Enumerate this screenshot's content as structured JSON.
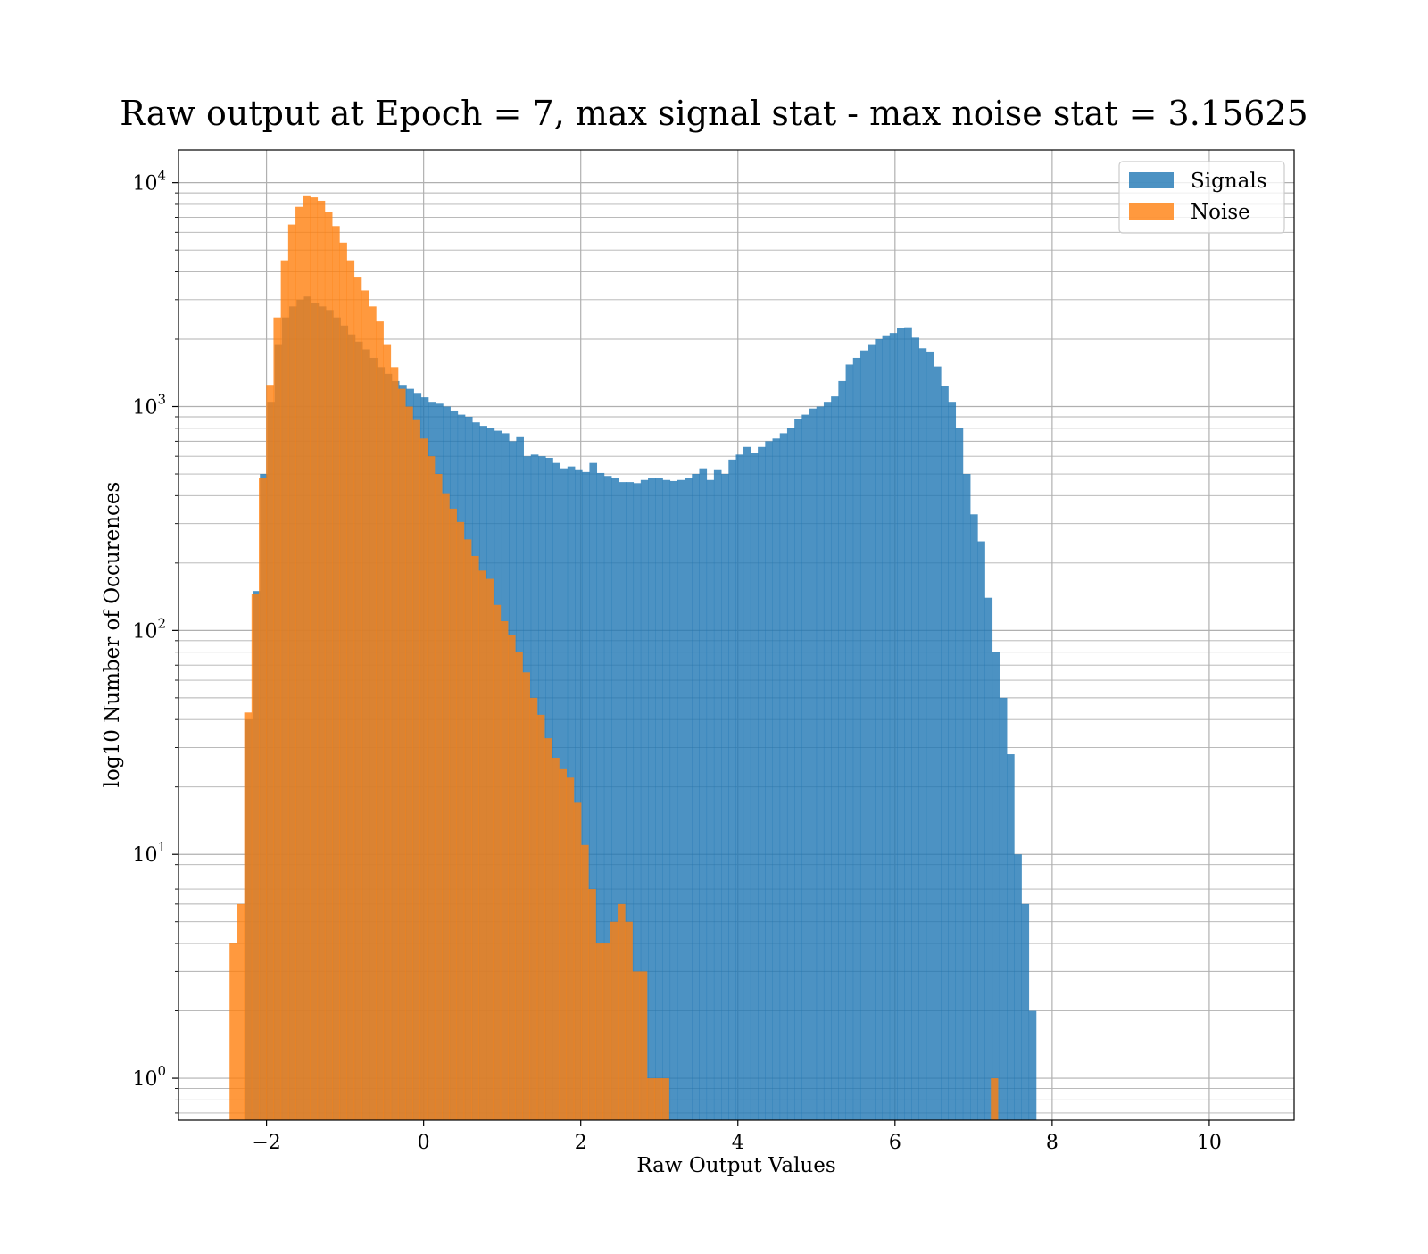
{
  "chart_data": {
    "type": "bar",
    "title": "Raw output at Epoch = 7, max signal stat - max noise stat = 3.15625",
    "xlabel": "Raw Output Values",
    "ylabel": "log10 Number of Occurences",
    "xlim": [
      -3.12,
      11.08
    ],
    "ylim": [
      0.65,
      14000
    ],
    "yscale": "log",
    "grid": true,
    "legend_position": "top-right",
    "x_ticks": [
      {
        "value": -2,
        "label": "−2"
      },
      {
        "value": 0,
        "label": "0"
      },
      {
        "value": 2,
        "label": "2"
      },
      {
        "value": 4,
        "label": "4"
      },
      {
        "value": 6,
        "label": "6"
      },
      {
        "value": 8,
        "label": "8"
      },
      {
        "value": 10,
        "label": "10"
      }
    ],
    "y_ticks": [
      {
        "value": 1,
        "base": "10",
        "exp": "0"
      },
      {
        "value": 10,
        "base": "10",
        "exp": "1"
      },
      {
        "value": 100,
        "base": "10",
        "exp": "2"
      },
      {
        "value": 1000,
        "base": "10",
        "exp": "3"
      },
      {
        "value": 10000,
        "base": "10",
        "exp": "4"
      }
    ],
    "series": [
      {
        "name": "Signals",
        "color": "#1f77b4",
        "opacity": 0.8,
        "bin_start": -2.27,
        "bin_width": 0.0932,
        "counts": [
          40,
          150,
          500,
          1050,
          1900,
          2500,
          2800,
          3000,
          3100,
          2900,
          2800,
          2700,
          2500,
          2300,
          2100,
          1950,
          1800,
          1650,
          1500,
          1400,
          1300,
          1250,
          1200,
          1150,
          1100,
          1050,
          1030,
          1000,
          960,
          920,
          900,
          850,
          820,
          800,
          780,
          760,
          700,
          730,
          600,
          610,
          600,
          590,
          560,
          530,
          540,
          520,
          510,
          560,
          505,
          490,
          480,
          460,
          460,
          455,
          470,
          480,
          480,
          470,
          465,
          470,
          480,
          500,
          530,
          470,
          520,
          500,
          580,
          610,
          660,
          620,
          660,
          700,
          720,
          760,
          800,
          880,
          920,
          980,
          1000,
          1050,
          1110,
          1300,
          1540,
          1650,
          1780,
          1900,
          2000,
          2080,
          2130,
          2240,
          2260,
          2030,
          1820,
          1760,
          1510,
          1240,
          1050,
          800,
          500,
          330,
          250,
          140,
          80,
          50,
          28,
          10,
          6,
          2
        ]
      },
      {
        "name": "Noise",
        "color": "#ff7f0e",
        "opacity": 0.8,
        "bin_start": -2.47,
        "bin_width": 0.0932,
        "counts": [
          4,
          6,
          43,
          145,
          480,
          1250,
          2500,
          4500,
          6500,
          7800,
          8700,
          8600,
          8300,
          7400,
          6400,
          5400,
          4500,
          3800,
          3300,
          2800,
          2400,
          1900,
          1500,
          1200,
          1000,
          870,
          720,
          600,
          500,
          410,
          350,
          305,
          255,
          215,
          185,
          170,
          130,
          110,
          95,
          80,
          65,
          50,
          42,
          33,
          27,
          24,
          22,
          17,
          11,
          7,
          4,
          4,
          5,
          6,
          5,
          3,
          3,
          1,
          1,
          1
        ]
      }
    ],
    "outlier_bins": [
      {
        "series": "Noise",
        "x": 7.22,
        "count": 1
      }
    ]
  }
}
